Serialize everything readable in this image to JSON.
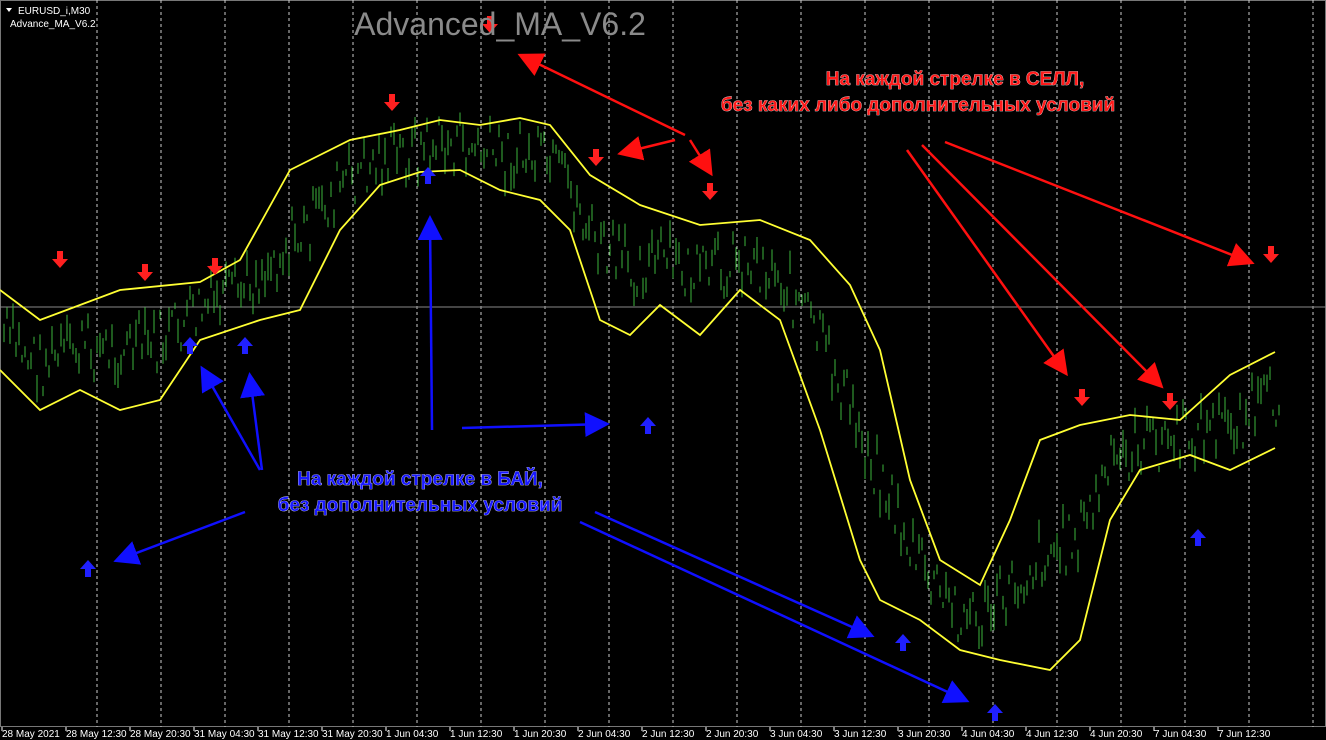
{
  "header": {
    "symbol": "EURUSD_i,M30",
    "indicator": "Advance_MA_V6.2",
    "watermark": "Advanced_MA_V6.2"
  },
  "annotations": {
    "sell": [
      "На каждой стрелке в СЕЛЛ,",
      "без каких либо дополнительных условий"
    ],
    "buy": [
      "На каждой стрелке в БАЙ,",
      "без дополнительных условий"
    ]
  },
  "time_axis": [
    "28 May 2021",
    "28 May 12:30",
    "28 May 20:30",
    "31 May 04:30",
    "31 May 12:30",
    "31 May 20:30",
    "1 Jun 04:30",
    "1 Jun 12:30",
    "1 Jun 20:30",
    "2 Jun 04:30",
    "2 Jun 12:30",
    "2 Jun 20:30",
    "3 Jun 04:30",
    "3 Jun 12:30",
    "3 Jun 20:30",
    "4 Jun 04:30",
    "4 Jun 12:30",
    "4 Jun 20:30",
    "7 Jun 04:30",
    "7 Jun 12:30"
  ]
}
